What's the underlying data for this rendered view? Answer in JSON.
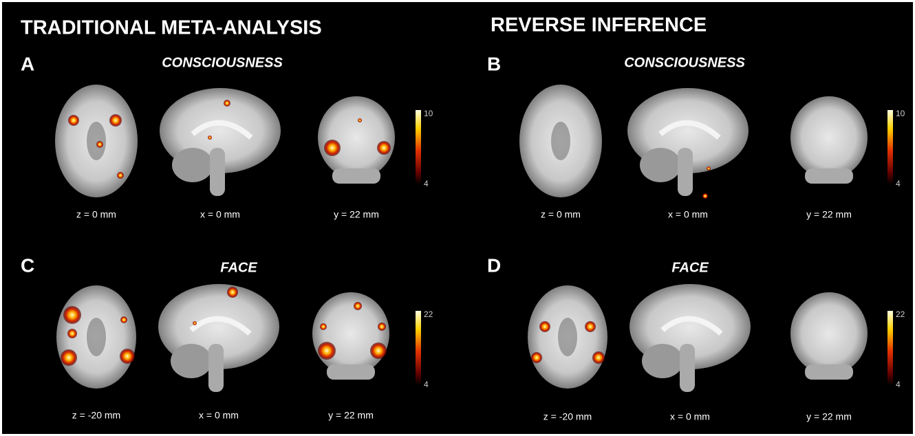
{
  "headers": [
    "TRADITIONAL META-ANALYSIS",
    "REVERSE INFERENCE"
  ],
  "panels": [
    {
      "letter": "A",
      "title": "CONSCIOUSNESS",
      "slices": [
        "z = 0 mm",
        "x = 0 mm",
        "y = 22 mm"
      ],
      "colorbar": {
        "max": 10,
        "min": 4
      }
    },
    {
      "letter": "B",
      "title": "CONSCIOUSNESS",
      "slices": [
        "z = 0 mm",
        "x = 0 mm",
        "y = 22 mm"
      ],
      "colorbar": {
        "max": 10,
        "min": 4
      }
    },
    {
      "letter": "C",
      "title": "FACE",
      "slices": [
        "z = -20 mm",
        "x = 0 mm",
        "y = 22 mm"
      ],
      "colorbar": {
        "max": 22,
        "min": 4
      }
    },
    {
      "letter": "D",
      "title": "FACE",
      "slices": [
        "z = -20 mm",
        "x = 0 mm",
        "y = 22 mm"
      ],
      "colorbar": {
        "max": 22,
        "min": 4
      }
    }
  ]
}
